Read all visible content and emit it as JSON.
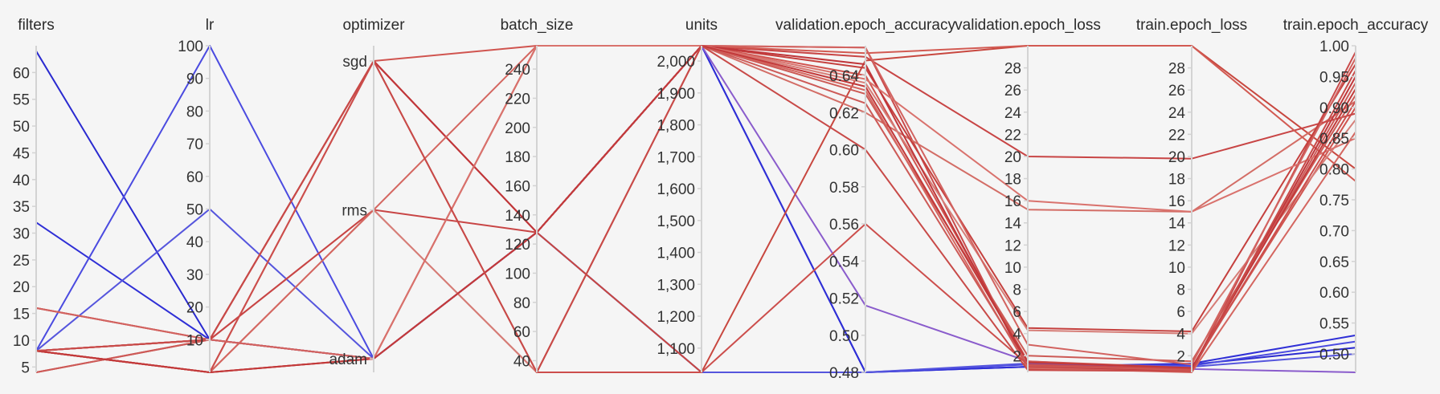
{
  "chart_data": {
    "type": "parallel_coordinates",
    "axes": [
      {
        "key": "filters",
        "label": "filters",
        "range": [
          4,
          65
        ],
        "ticks": [
          5,
          10,
          15,
          20,
          25,
          30,
          35,
          40,
          45,
          50,
          55,
          60
        ]
      },
      {
        "key": "lr",
        "label": "lr",
        "range": [
          0.001,
          100
        ],
        "ticks": [
          10,
          20,
          30,
          40,
          50,
          60,
          70,
          80,
          90,
          100
        ]
      },
      {
        "key": "optimizer",
        "label": "optimizer",
        "categories": [
          "sgd",
          "rms",
          "adam"
        ]
      },
      {
        "key": "batch_size",
        "label": "batch_size",
        "range": [
          32,
          256
        ],
        "ticks": [
          40,
          60,
          80,
          100,
          120,
          140,
          160,
          180,
          200,
          220,
          240
        ]
      },
      {
        "key": "units",
        "label": "units",
        "range": [
          1024,
          2048
        ],
        "ticks": [
          "1,100",
          "1,200",
          "1,300",
          "1,400",
          "1,500",
          "1,600",
          "1,700",
          "1,800",
          "1,900",
          "2,000"
        ]
      },
      {
        "key": "validation_epoch_accuracy",
        "label": "validation.epoch_accuracy",
        "range": [
          0.48,
          0.656
        ],
        "ticks": [
          "0.48",
          "0.50",
          "0.52",
          "0.54",
          "0.56",
          "0.58",
          "0.60",
          "0.62",
          "0.64"
        ]
      },
      {
        "key": "validation_epoch_loss",
        "label": "validation.epoch_loss",
        "range": [
          0.5,
          30
        ],
        "ticks": [
          2,
          4,
          6,
          8,
          10,
          12,
          14,
          16,
          18,
          20,
          22,
          24,
          26,
          28
        ]
      },
      {
        "key": "train_epoch_loss",
        "label": "train.epoch_loss",
        "range": [
          0.5,
          30
        ],
        "ticks": [
          2,
          4,
          6,
          8,
          10,
          12,
          14,
          16,
          18,
          20,
          22,
          24,
          26,
          28
        ]
      },
      {
        "key": "train_epoch_accuracy",
        "label": "train.epoch_accuracy",
        "range": [
          0.47,
          1.0
        ],
        "ticks": [
          "0.50",
          "0.55",
          "0.60",
          "0.65",
          "0.70",
          "0.75",
          "0.80",
          "0.85",
          "0.90",
          "0.95",
          "1.00"
        ]
      }
    ],
    "series": [
      {
        "color": "#2a2ad0",
        "values": [
          64,
          10,
          "adam",
          128,
          2048,
          0.48,
          1.0,
          1.2,
          0.51
        ]
      },
      {
        "color": "#2f2fd6",
        "values": [
          32,
          10,
          "adam",
          128,
          2048,
          0.48,
          1.0,
          1.3,
          0.53
        ]
      },
      {
        "color": "#4b4be0",
        "values": [
          8,
          100,
          "adam",
          128,
          1024,
          0.48,
          1.2,
          1.1,
          0.52
        ]
      },
      {
        "color": "#5555dd",
        "values": [
          8,
          50,
          "adam",
          128,
          1024,
          0.48,
          1.3,
          1.0,
          0.5
        ]
      },
      {
        "color": "#8a5ccc",
        "values": [
          8,
          10,
          "adam",
          128,
          2048,
          0.516,
          1.5,
          0.8,
          0.47
        ]
      },
      {
        "color": "#c94a4a",
        "values": [
          16,
          10,
          "sgd",
          128,
          2048,
          0.655,
          0.8,
          0.7,
          0.99
        ]
      },
      {
        "color": "#d0544f",
        "values": [
          8,
          10,
          "sgd",
          256,
          2048,
          0.64,
          1.5,
          0.9,
          0.9
        ]
      },
      {
        "color": "#c8473f",
        "values": [
          8,
          0.001,
          "sgd",
          128,
          1024,
          0.648,
          30,
          30,
          0.8
        ]
      },
      {
        "color": "#d36d66",
        "values": [
          8,
          10,
          "rms",
          32,
          2048,
          0.62,
          15.2,
          15.0,
          0.91
        ]
      },
      {
        "color": "#c84545",
        "values": [
          4,
          10,
          "rms",
          128,
          2048,
          0.65,
          20.0,
          19.8,
          0.89
        ]
      },
      {
        "color": "#d25a52",
        "values": [
          8,
          0.001,
          "adam",
          256,
          2048,
          0.652,
          30,
          30,
          0.78
        ]
      },
      {
        "color": "#c5403e",
        "values": [
          8,
          0.001,
          "adam",
          128,
          2048,
          0.644,
          4.5,
          4.2,
          0.97
        ]
      },
      {
        "color": "#d67d77",
        "values": [
          8,
          0.001,
          "rms",
          32,
          2048,
          0.636,
          4.3,
          4.0,
          0.88
        ]
      },
      {
        "color": "#cc5a55",
        "values": [
          16,
          10,
          "adam",
          256,
          2048,
          0.63,
          2.0,
          1.5,
          0.92
        ]
      },
      {
        "color": "#c0363a",
        "values": [
          8,
          10,
          "sgd",
          128,
          2048,
          0.646,
          1.0,
          0.6,
          0.95
        ]
      },
      {
        "color": "#d46660",
        "values": [
          8,
          0.001,
          "rms",
          256,
          2048,
          0.632,
          0.9,
          0.5,
          0.86
        ]
      },
      {
        "color": "#cd5a57",
        "values": [
          4,
          10,
          "adam",
          128,
          2048,
          0.625,
          1.1,
          0.7,
          0.94
        ]
      },
      {
        "color": "#d9726d",
        "values": [
          8,
          10,
          "adam",
          256,
          2048,
          0.638,
          16.0,
          15.0,
          0.85
        ]
      },
      {
        "color": "#cc4e4c",
        "values": [
          8,
          0.001,
          "sgd",
          32,
          1024,
          0.56,
          1.2,
          0.8,
          0.91
        ]
      },
      {
        "color": "#d26360",
        "values": [
          16,
          10,
          "adam",
          128,
          2048,
          0.655,
          3.0,
          1.2,
          0.98
        ]
      },
      {
        "color": "#c2393a",
        "values": [
          8,
          0.001,
          "adam",
          128,
          2048,
          0.634,
          1.4,
          0.9,
          0.93
        ]
      },
      {
        "color": "#c84a48",
        "values": [
          8,
          10,
          "sgd",
          32,
          2048,
          0.6,
          0.7,
          0.6,
          0.96
        ]
      }
    ]
  }
}
